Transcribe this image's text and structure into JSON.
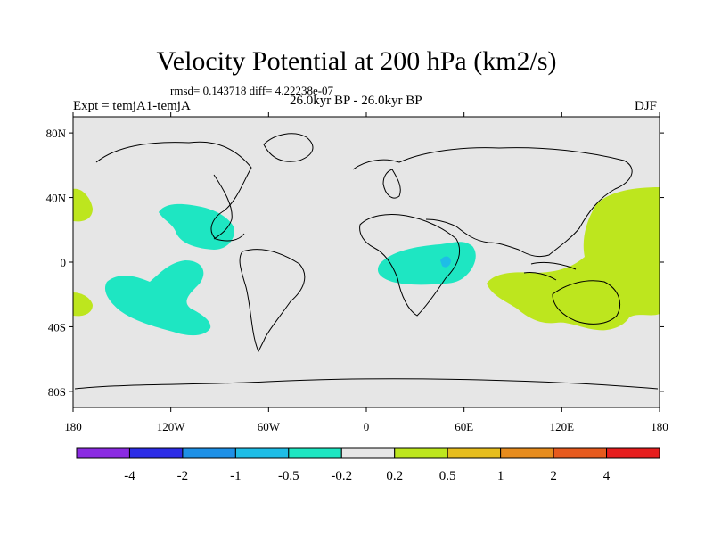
{
  "title": "Velocity Potential at 200 hPa (km2/s)",
  "stats": "rmsd= 0.143718  diff= 4.22238e-07",
  "left_label": "Expt = temjA1-temjA",
  "center_label": "26.0kyr BP - 26.0kyr BP",
  "right_label": "DJF",
  "lat_labels": [
    {
      "text": "80N",
      "lat": 80
    },
    {
      "text": "40N",
      "lat": 40
    },
    {
      "text": "0",
      "lat": 0
    },
    {
      "text": "40S",
      "lat": -40
    },
    {
      "text": "80S",
      "lat": -80
    }
  ],
  "lon_labels": [
    {
      "text": "180",
      "lon": -180
    },
    {
      "text": "120W",
      "lon": -120
    },
    {
      "text": "60W",
      "lon": -60
    },
    {
      "text": "0",
      "lon": 0
    },
    {
      "text": "60E",
      "lon": 60
    },
    {
      "text": "120E",
      "lon": 120
    },
    {
      "text": "180",
      "lon": 180
    }
  ],
  "colorbar": {
    "colors": [
      "#8b2be2",
      "#2c2ce6",
      "#1e90e6",
      "#1ebde6",
      "#1ee6c2",
      "#e6e6e6",
      "#bde61e",
      "#e6bd1e",
      "#e68c1e",
      "#e65a1e",
      "#e61e1e"
    ],
    "labels": [
      "-4",
      "-2",
      "-1",
      "-0.5",
      "-0.2",
      "0.2",
      "0.5",
      "1",
      "2",
      "4"
    ]
  },
  "colors": {
    "ocean": "#e6e6e6",
    "neg_fill": "#1ee6c2",
    "neg_strong": "#1ebde6",
    "pos_fill": "#bde61e"
  }
}
